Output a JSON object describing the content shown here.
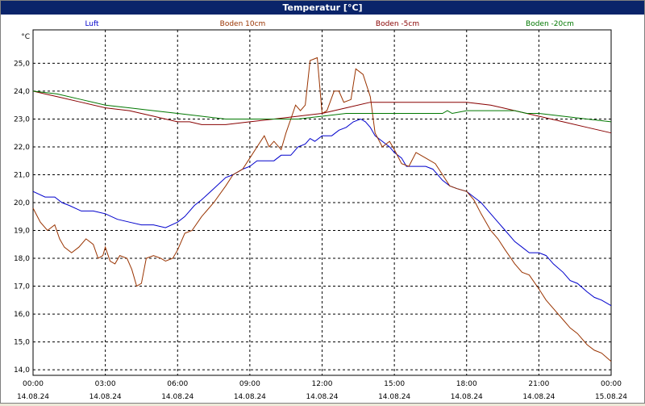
{
  "window": {
    "title": "Temperatur [°C]"
  },
  "chart_data": {
    "type": "line",
    "title": "Temperatur [°C]",
    "ylabel": "°C",
    "xlabel": "",
    "ylim": [
      13.8,
      26.2
    ],
    "y_ticks": [
      "14,0",
      "15,0",
      "16,0",
      "17,0",
      "18,0",
      "19,0",
      "20,0",
      "21,0",
      "22,0",
      "23,0",
      "24,0",
      "25,0"
    ],
    "x_ticks": [
      {
        "time": "00:00",
        "date": "14.08.24"
      },
      {
        "time": "03:00",
        "date": "14.08.24"
      },
      {
        "time": "06:00",
        "date": "14.08.24"
      },
      {
        "time": "09:00",
        "date": "14.08.24"
      },
      {
        "time": "12:00",
        "date": "14.08.24"
      },
      {
        "time": "15:00",
        "date": "14.08.24"
      },
      {
        "time": "18:00",
        "date": "14.08.24"
      },
      {
        "time": "21:00",
        "date": "14.08.24"
      },
      {
        "time": "00:00",
        "date": "15.08.24"
      }
    ],
    "x_hours": [
      0,
      24
    ],
    "grid": true,
    "series": [
      {
        "name": "Luft",
        "color": "#0000cc",
        "points": [
          [
            0,
            20.4
          ],
          [
            0.5,
            20.2
          ],
          [
            0.9,
            20.2
          ],
          [
            1.2,
            20.0
          ],
          [
            1.5,
            19.9
          ],
          [
            2.0,
            19.7
          ],
          [
            2.5,
            19.7
          ],
          [
            3.0,
            19.6
          ],
          [
            3.5,
            19.4
          ],
          [
            4.0,
            19.3
          ],
          [
            4.5,
            19.2
          ],
          [
            5.0,
            19.2
          ],
          [
            5.5,
            19.1
          ],
          [
            6.0,
            19.3
          ],
          [
            6.3,
            19.5
          ],
          [
            6.7,
            19.9
          ],
          [
            7.0,
            20.1
          ],
          [
            7.5,
            20.5
          ],
          [
            8.0,
            20.9
          ],
          [
            8.3,
            21.0
          ],
          [
            8.7,
            21.2
          ],
          [
            9.0,
            21.3
          ],
          [
            9.3,
            21.5
          ],
          [
            9.7,
            21.5
          ],
          [
            10.0,
            21.5
          ],
          [
            10.3,
            21.7
          ],
          [
            10.7,
            21.7
          ],
          [
            11.0,
            22.0
          ],
          [
            11.3,
            22.1
          ],
          [
            11.5,
            22.3
          ],
          [
            11.7,
            22.2
          ],
          [
            12.0,
            22.4
          ],
          [
            12.4,
            22.4
          ],
          [
            12.7,
            22.6
          ],
          [
            13.0,
            22.7
          ],
          [
            13.3,
            22.9
          ],
          [
            13.6,
            23.0
          ],
          [
            13.8,
            22.9
          ],
          [
            14.0,
            22.7
          ],
          [
            14.2,
            22.4
          ],
          [
            14.5,
            22.2
          ],
          [
            14.8,
            22.0
          ],
          [
            15.0,
            21.8
          ],
          [
            15.3,
            21.6
          ],
          [
            15.5,
            21.3
          ],
          [
            15.8,
            21.3
          ],
          [
            16.0,
            21.3
          ],
          [
            16.3,
            21.3
          ],
          [
            16.6,
            21.2
          ],
          [
            17.0,
            20.8
          ],
          [
            17.3,
            20.6
          ],
          [
            17.6,
            20.5
          ],
          [
            18.0,
            20.4
          ],
          [
            18.3,
            20.2
          ],
          [
            18.6,
            20.0
          ],
          [
            19.0,
            19.6
          ],
          [
            19.3,
            19.3
          ],
          [
            19.6,
            19.0
          ],
          [
            20.0,
            18.6
          ],
          [
            20.3,
            18.4
          ],
          [
            20.6,
            18.2
          ],
          [
            21.0,
            18.2
          ],
          [
            21.3,
            18.1
          ],
          [
            21.6,
            17.8
          ],
          [
            22.0,
            17.5
          ],
          [
            22.3,
            17.2
          ],
          [
            22.6,
            17.1
          ],
          [
            23.0,
            16.8
          ],
          [
            23.3,
            16.6
          ],
          [
            23.6,
            16.5
          ],
          [
            24.0,
            16.3
          ]
        ]
      },
      {
        "name": "Boden 10cm",
        "color": "#993300",
        "points": [
          [
            0,
            19.8
          ],
          [
            0.3,
            19.3
          ],
          [
            0.6,
            19.0
          ],
          [
            0.9,
            19.2
          ],
          [
            1.1,
            18.7
          ],
          [
            1.3,
            18.4
          ],
          [
            1.6,
            18.2
          ],
          [
            1.9,
            18.4
          ],
          [
            2.2,
            18.7
          ],
          [
            2.5,
            18.5
          ],
          [
            2.7,
            18.0
          ],
          [
            2.9,
            18.1
          ],
          [
            3.0,
            18.4
          ],
          [
            3.2,
            17.9
          ],
          [
            3.4,
            17.8
          ],
          [
            3.6,
            18.1
          ],
          [
            3.9,
            18.0
          ],
          [
            4.1,
            17.6
          ],
          [
            4.3,
            17.0
          ],
          [
            4.5,
            17.1
          ],
          [
            4.7,
            18.0
          ],
          [
            5.0,
            18.1
          ],
          [
            5.3,
            18.0
          ],
          [
            5.5,
            17.9
          ],
          [
            5.8,
            18.0
          ],
          [
            6.0,
            18.3
          ],
          [
            6.3,
            18.9
          ],
          [
            6.6,
            19.0
          ],
          [
            7.0,
            19.5
          ],
          [
            7.5,
            20.0
          ],
          [
            8.0,
            20.6
          ],
          [
            8.3,
            21.0
          ],
          [
            8.7,
            21.2
          ],
          [
            9.0,
            21.6
          ],
          [
            9.3,
            22.0
          ],
          [
            9.6,
            22.4
          ],
          [
            9.8,
            22.0
          ],
          [
            10.0,
            22.2
          ],
          [
            10.3,
            21.9
          ],
          [
            10.5,
            22.5
          ],
          [
            10.7,
            23.0
          ],
          [
            10.9,
            23.5
          ],
          [
            11.1,
            23.3
          ],
          [
            11.3,
            23.5
          ],
          [
            11.5,
            25.1
          ],
          [
            11.8,
            25.2
          ],
          [
            12.0,
            23.2
          ],
          [
            12.2,
            23.3
          ],
          [
            12.5,
            24.0
          ],
          [
            12.7,
            24.0
          ],
          [
            12.9,
            23.6
          ],
          [
            13.2,
            23.7
          ],
          [
            13.4,
            24.8
          ],
          [
            13.7,
            24.6
          ],
          [
            14.0,
            23.8
          ],
          [
            14.2,
            22.5
          ],
          [
            14.5,
            22.0
          ],
          [
            14.8,
            22.2
          ],
          [
            15.0,
            21.9
          ],
          [
            15.3,
            21.4
          ],
          [
            15.6,
            21.3
          ],
          [
            15.9,
            21.8
          ],
          [
            16.3,
            21.6
          ],
          [
            16.7,
            21.4
          ],
          [
            17.0,
            21.0
          ],
          [
            17.3,
            20.6
          ],
          [
            17.6,
            20.5
          ],
          [
            18.0,
            20.4
          ],
          [
            18.3,
            20.1
          ],
          [
            18.6,
            19.6
          ],
          [
            19.0,
            19.0
          ],
          [
            19.3,
            18.7
          ],
          [
            19.6,
            18.3
          ],
          [
            20.0,
            17.8
          ],
          [
            20.3,
            17.5
          ],
          [
            20.6,
            17.4
          ],
          [
            21.0,
            16.9
          ],
          [
            21.3,
            16.5
          ],
          [
            21.6,
            16.2
          ],
          [
            22.0,
            15.8
          ],
          [
            22.3,
            15.5
          ],
          [
            22.6,
            15.3
          ],
          [
            23.0,
            14.9
          ],
          [
            23.3,
            14.7
          ],
          [
            23.6,
            14.6
          ],
          [
            24.0,
            14.3
          ]
        ]
      },
      {
        "name": "Boden -5cm",
        "color": "#880000",
        "points": [
          [
            0,
            24.0
          ],
          [
            0.5,
            23.9
          ],
          [
            1.0,
            23.8
          ],
          [
            2.0,
            23.6
          ],
          [
            3.0,
            23.4
          ],
          [
            4.0,
            23.3
          ],
          [
            5.0,
            23.1
          ],
          [
            5.5,
            23.0
          ],
          [
            6.0,
            22.9
          ],
          [
            6.5,
            22.9
          ],
          [
            7.0,
            22.8
          ],
          [
            8.0,
            22.8
          ],
          [
            9.0,
            22.9
          ],
          [
            10.0,
            23.0
          ],
          [
            11.0,
            23.1
          ],
          [
            12.0,
            23.2
          ],
          [
            13.0,
            23.4
          ],
          [
            14.0,
            23.6
          ],
          [
            15.0,
            23.6
          ],
          [
            16.0,
            23.6
          ],
          [
            17.0,
            23.6
          ],
          [
            18.0,
            23.6
          ],
          [
            19.0,
            23.5
          ],
          [
            19.5,
            23.4
          ],
          [
            20.0,
            23.3
          ],
          [
            21.0,
            23.1
          ],
          [
            22.0,
            22.9
          ],
          [
            23.0,
            22.7
          ],
          [
            24.0,
            22.5
          ]
        ]
      },
      {
        "name": "Boden -20cm",
        "color": "#007700",
        "points": [
          [
            0,
            24.0
          ],
          [
            1.0,
            23.9
          ],
          [
            2.0,
            23.7
          ],
          [
            3.0,
            23.5
          ],
          [
            4.0,
            23.4
          ],
          [
            5.0,
            23.3
          ],
          [
            6.0,
            23.2
          ],
          [
            7.0,
            23.1
          ],
          [
            8.0,
            23.0
          ],
          [
            9.0,
            23.0
          ],
          [
            10.0,
            23.0
          ],
          [
            11.0,
            23.0
          ],
          [
            12.0,
            23.1
          ],
          [
            13.0,
            23.2
          ],
          [
            14.0,
            23.2
          ],
          [
            15.0,
            23.2
          ],
          [
            16.0,
            23.2
          ],
          [
            17.0,
            23.2
          ],
          [
            17.2,
            23.3
          ],
          [
            17.4,
            23.2
          ],
          [
            18.0,
            23.3
          ],
          [
            19.0,
            23.3
          ],
          [
            20.0,
            23.3
          ],
          [
            20.5,
            23.2
          ],
          [
            21.0,
            23.2
          ],
          [
            22.0,
            23.1
          ],
          [
            23.0,
            23.0
          ],
          [
            24.0,
            22.9
          ]
        ]
      }
    ]
  }
}
